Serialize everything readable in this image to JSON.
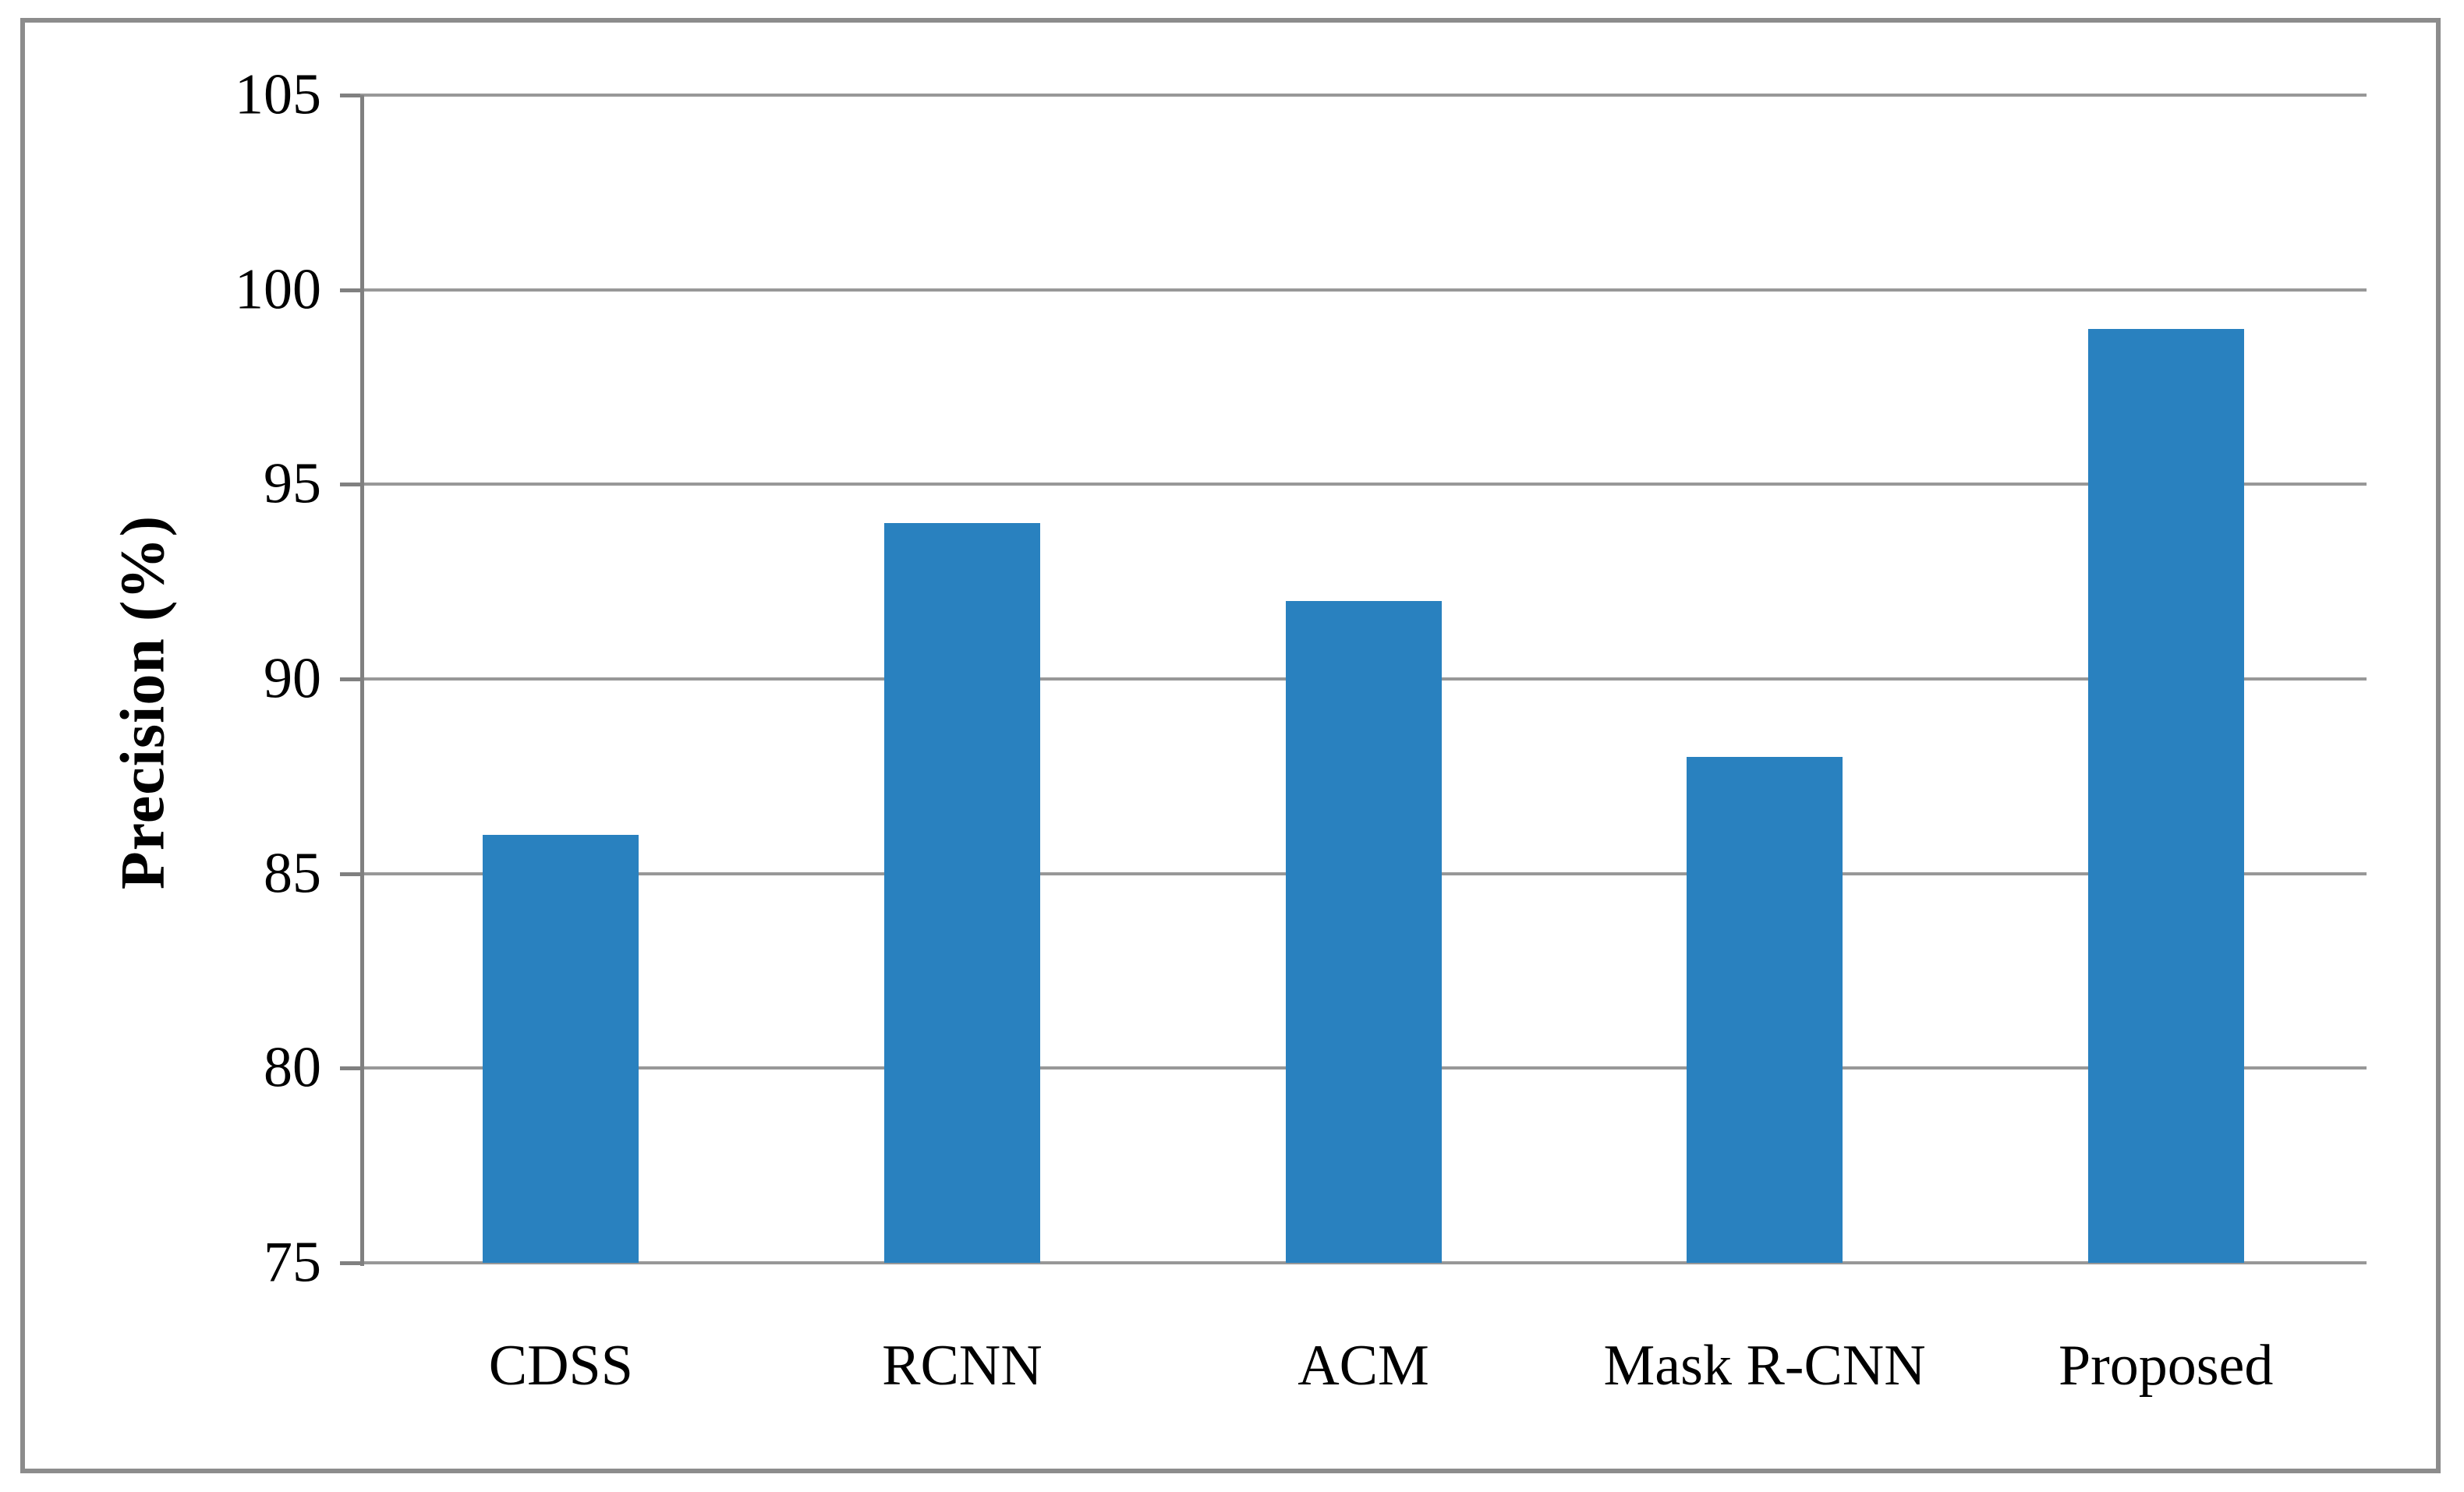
{
  "chart_data": {
    "type": "bar",
    "categories": [
      "CDSS",
      "RCNN",
      "ACM",
      "Mask R-CNN",
      "Proposed"
    ],
    "values": [
      86,
      94,
      92,
      88,
      99
    ],
    "title": "",
    "xlabel": "",
    "ylabel": "Precision (%)",
    "ylim": [
      75,
      105
    ],
    "yticks": [
      105,
      100,
      95,
      90,
      85,
      80,
      75
    ],
    "grid": true,
    "legend_position": "none",
    "bar_color": "#2981BF",
    "gridline_color": "#989898",
    "axis_color": "#808080",
    "frame_border_color": "#8C8C8C",
    "text_color": "#000000",
    "background_color": "#FFFFFF"
  }
}
